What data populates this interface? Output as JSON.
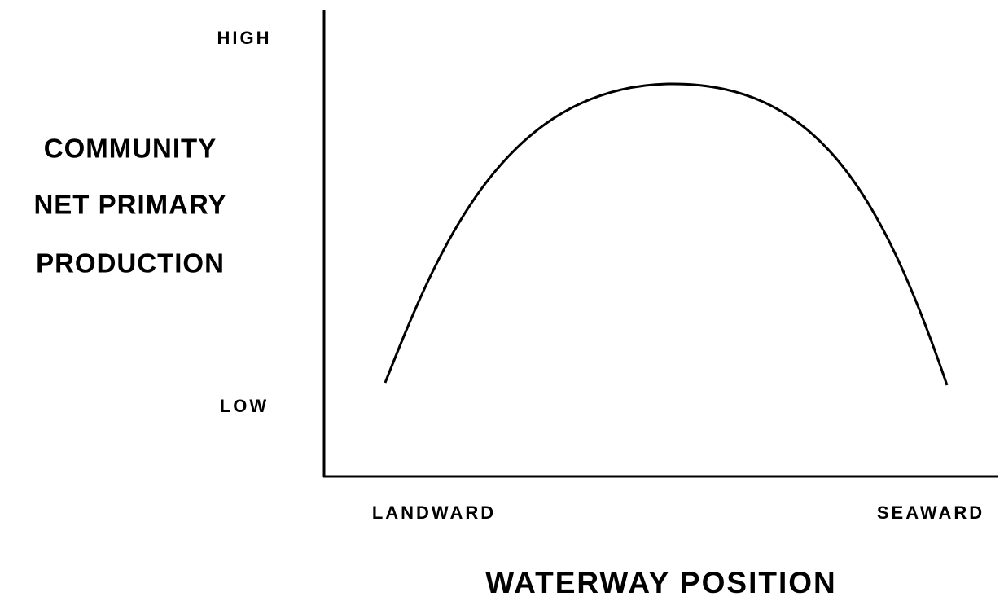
{
  "y_axis": {
    "high_label": "HIGH",
    "low_label": "LOW",
    "title_lines": [
      "COMMUNITY",
      "NET PRIMARY",
      "PRODUCTION"
    ]
  },
  "x_axis": {
    "left_label": "LANDWARD",
    "right_label": "SEAWARD",
    "title": "WATERWAY POSITION"
  }
}
